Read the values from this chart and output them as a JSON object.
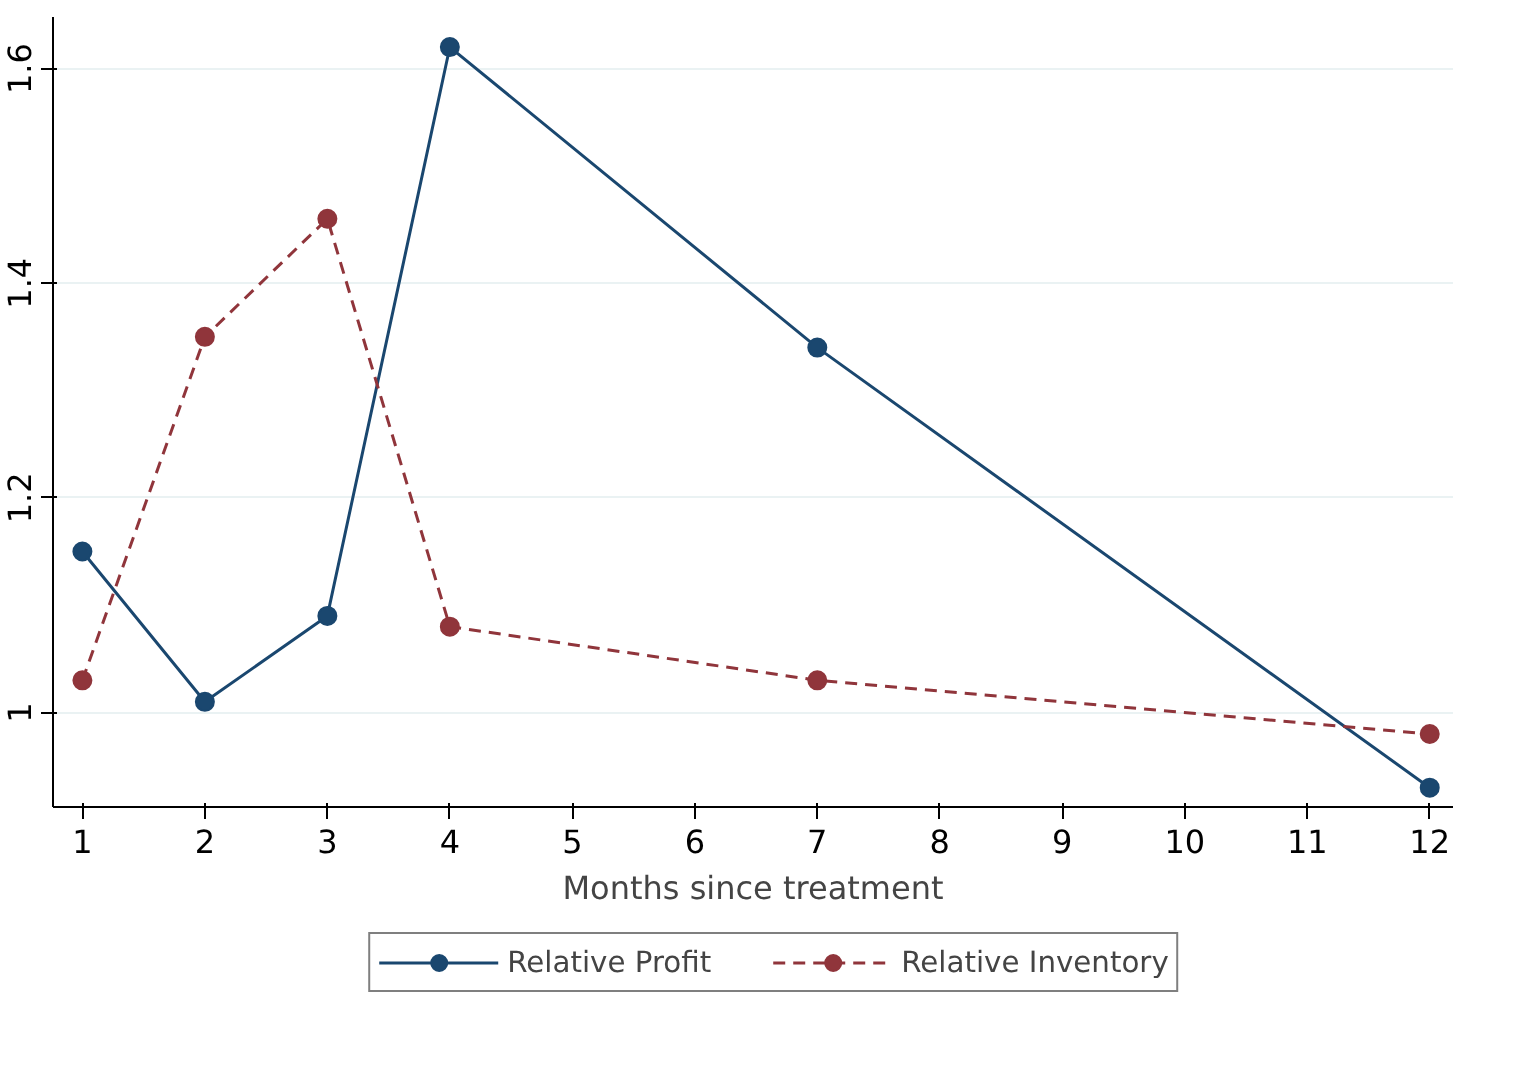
{
  "chart_data": {
    "type": "line",
    "xlabel": "Months since treatment",
    "x": [
      1,
      2,
      3,
      4,
      7,
      12
    ],
    "series": [
      {
        "name": "Relative Profit",
        "color": "#1a476f",
        "values": [
          1.15,
          1.01,
          1.09,
          1.62,
          1.34,
          0.93
        ],
        "line_style": "solid"
      },
      {
        "name": "Relative Inventory",
        "color": "#90353b",
        "values": [
          1.03,
          1.35,
          1.46,
          1.08,
          1.03,
          0.98
        ],
        "line_style": "dashed"
      }
    ],
    "xlim": [
      0.76,
      12.19
    ],
    "ylim": [
      0.912,
      1.648
    ],
    "xticks": [
      1,
      2,
      3,
      4,
      5,
      6,
      7,
      8,
      9,
      10,
      11,
      12
    ],
    "yticks": [
      1,
      1.2,
      1.4,
      1.6
    ],
    "grid": "y",
    "legend": "bottom",
    "marker": "circle"
  }
}
